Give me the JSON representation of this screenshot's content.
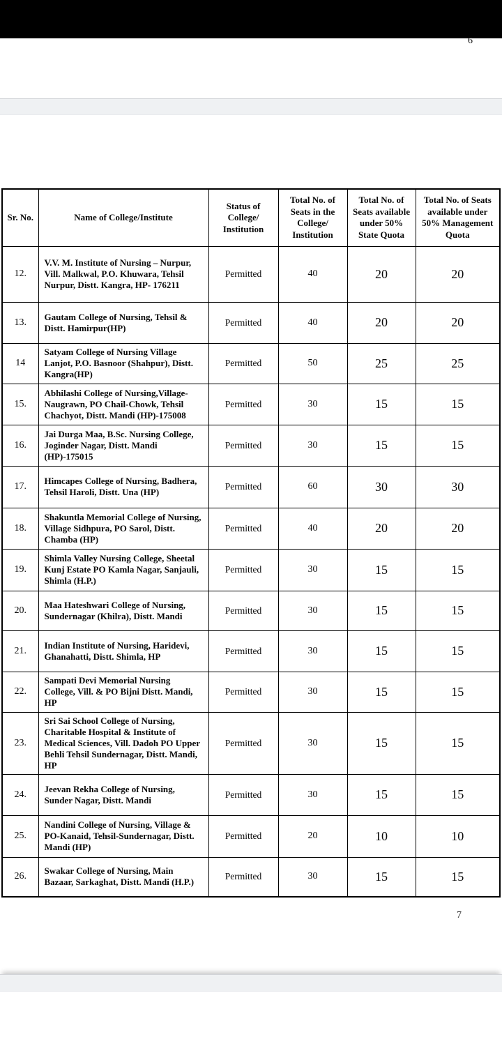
{
  "viewer": {
    "page6_number": "6",
    "page7_number": "7"
  },
  "table": {
    "columns": [
      "Sr. No.",
      "Name of College/Institute",
      "Status of College/ Institution",
      "Total No. of Seats in the College/ Institution",
      "Total No. of Seats available under 50% State Quota",
      "Total No. of Seats available under 50% Management Quota"
    ],
    "rows": [
      {
        "sr": "12.",
        "name": "V.V. M. Institute of Nursing – Nurpur, Vill. Malkwal, P.O. Khuwara, Tehsil Nurpur, Distt. Kangra, HP- 176211",
        "status": "Permitted",
        "total": "40",
        "state": "20",
        "mgmt": "20"
      },
      {
        "sr": "13.",
        "name": "Gautam College of Nursing, Tehsil & Distt. Hamirpur(HP)",
        "status": "Permitted",
        "total": "40",
        "state": "20",
        "mgmt": "20"
      },
      {
        "sr": "14",
        "name": "Satyam College of Nursing Village Lanjot, P.O. Basnoor (Shahpur), Distt. Kangra(HP)",
        "status": "Permitted",
        "total": "50",
        "state": "25",
        "mgmt": "25"
      },
      {
        "sr": "15.",
        "name": "Abhilashi College of Nursing,Village- Naugrawn, PO Chail-Chowk, Tehsil Chachyot, Distt. Mandi (HP)-175008",
        "status": "Permitted",
        "total": "30",
        "state": "15",
        "mgmt": "15"
      },
      {
        "sr": "16.",
        "name": "Jai Durga Maa, B.Sc. Nursing College, Joginder Nagar, Distt. Mandi (HP)-175015",
        "status": "Permitted",
        "total": "30",
        "state": "15",
        "mgmt": "15"
      },
      {
        "sr": "17.",
        "name": "Himcapes College of Nursing, Badhera, Tehsil Haroli, Distt. Una (HP)",
        "status": "Permitted",
        "total": "60",
        "state": "30",
        "mgmt": "30"
      },
      {
        "sr": "18.",
        "name": "Shakuntla Memorial College of Nursing, Village Sidhpura, PO Sarol, Distt. Chamba (HP)",
        "status": "Permitted",
        "total": "40",
        "state": "20",
        "mgmt": "20"
      },
      {
        "sr": "19.",
        "name": "Shimla Valley Nursing College, Sheetal Kunj Estate PO Kamla Nagar, Sanjauli, Shimla (H.P.)",
        "status": "Permitted",
        "total": "30",
        "state": "15",
        "mgmt": "15"
      },
      {
        "sr": "20.",
        "name": "Maa Hateshwari College of Nursing, Sundernagar (Khilra), Distt. Mandi",
        "status": "Permitted",
        "total": "30",
        "state": "15",
        "mgmt": "15"
      },
      {
        "sr": "21.",
        "name": "Indian Institute of Nursing, Haridevi, Ghanahatti, Distt. Shimla, HP",
        "status": "Permitted",
        "total": "30",
        "state": "15",
        "mgmt": "15"
      },
      {
        "sr": "22.",
        "name": "Sampati Devi Memorial Nursing College, Vill. & PO Bijni Distt. Mandi, HP",
        "status": "Permitted",
        "total": "30",
        "state": "15",
        "mgmt": "15"
      },
      {
        "sr": "23.",
        "name": "Sri Sai School College of Nursing, Charitable Hospital & Institute of Medical Sciences, Vill. Dadoh PO Upper Behli Tehsil Sundernagar, Distt. Mandi, HP",
        "status": "Permitted",
        "total": "30",
        "state": "15",
        "mgmt": "15"
      },
      {
        "sr": "24.",
        "name": "Jeevan Rekha College of Nursing, Sunder Nagar, Distt. Mandi",
        "status": "Permitted",
        "total": "30",
        "state": "15",
        "mgmt": "15"
      },
      {
        "sr": "25.",
        "name": "Nandini College of Nursing, Village & PO-Kanaid, Tehsil-Sundernagar, Distt. Mandi (HP)",
        "status": "Permitted",
        "total": "20",
        "state": "10",
        "mgmt": "10"
      },
      {
        "sr": "26.",
        "name": "Swakar College of Nursing, Main Bazaar, Sarkaghat, Distt. Mandi (H.P.)",
        "status": "Permitted",
        "total": "30",
        "state": "15",
        "mgmt": "15"
      }
    ]
  }
}
